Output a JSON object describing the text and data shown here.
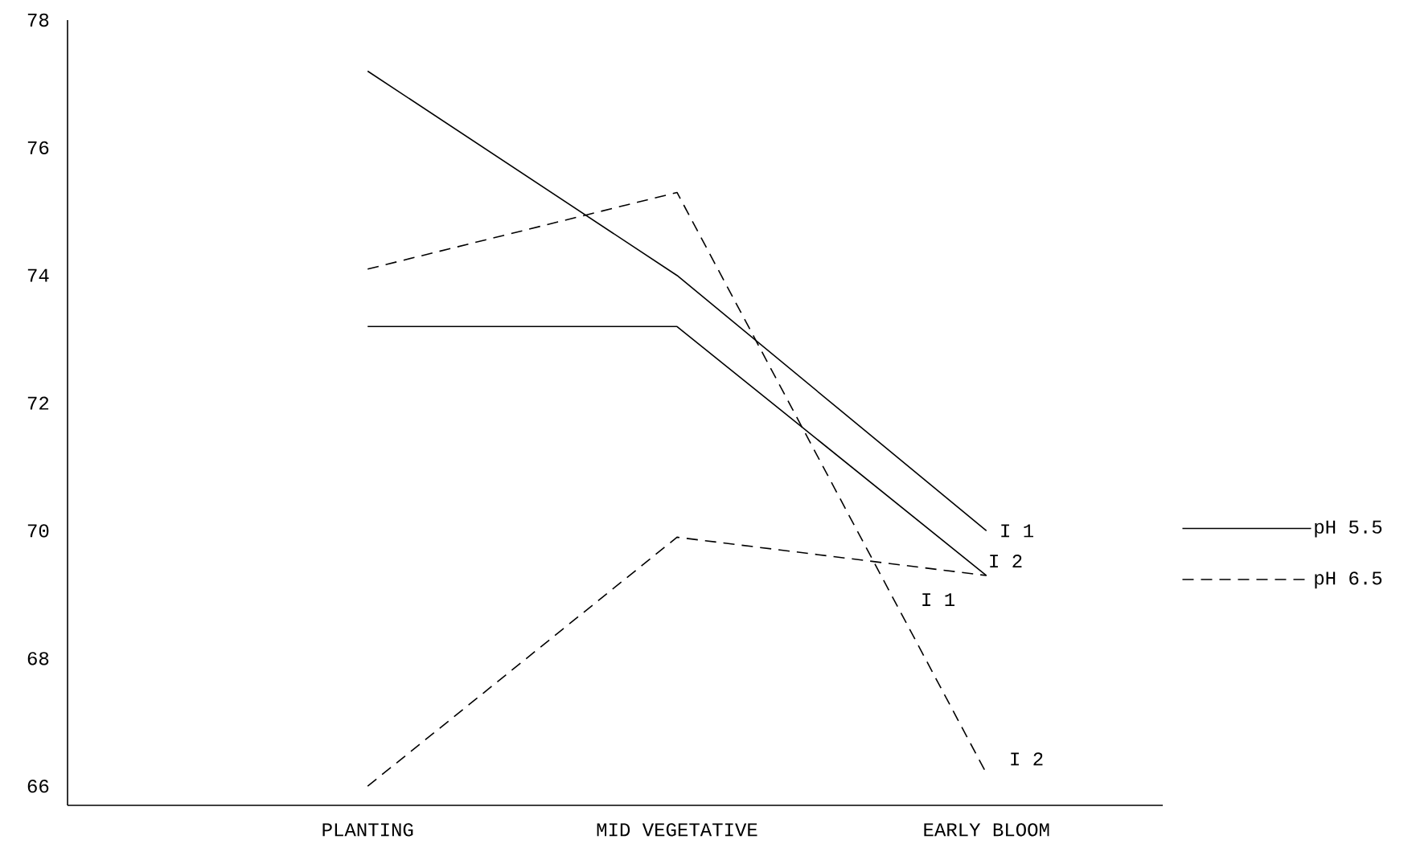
{
  "chart_data": {
    "type": "line",
    "categories": [
      "PLANTING",
      "MID VEGETATIVE",
      "EARLY BLOOM"
    ],
    "series": [
      {
        "name": "pH 5.5",
        "color": "#000000",
        "line_style": "solid",
        "values": [
          77.2,
          74.0,
          70.0
        ]
      },
      {
        "color": "#000000",
        "line_style": "solid",
        "values": [
          73.2,
          73.2,
          69.3
        ]
      },
      {
        "name": "pH 6.5",
        "color": "#000000",
        "line_style": "dashed",
        "values": [
          66.0,
          69.9,
          69.3
        ]
      },
      {
        "color": "#000000",
        "line_style": "dashed",
        "values": [
          74.1,
          75.3,
          66.2
        ]
      }
    ],
    "ylim": [
      65.7,
      78
    ],
    "yticks": [
      66,
      68,
      70,
      72,
      74,
      76,
      78
    ],
    "grid": false,
    "legend": "right",
    "annotations": [
      {
        "text": "I 1",
        "x": "EARLY BLOOM",
        "y": 70.0
      },
      {
        "text": "I 2",
        "x": "EARLY BLOOM",
        "y": 69.3
      },
      {
        "text": "I 1",
        "x": "EARLY BLOOM",
        "y": 69.3
      },
      {
        "text": "I 2",
        "x": "EARLY BLOOM",
        "y": 66.2
      }
    ]
  }
}
